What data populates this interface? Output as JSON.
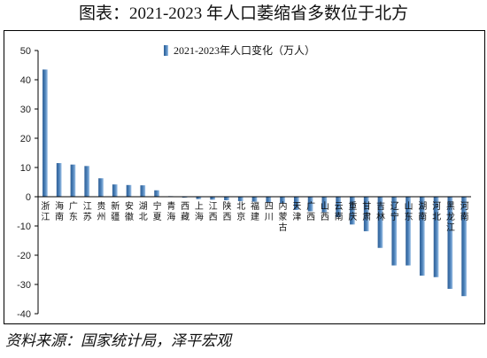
{
  "title": "图表：2021-2023 年人口萎缩省多数位于北方",
  "source": "资料来源：国家统计局，泽平宏观",
  "chart_data": {
    "type": "bar",
    "series": [
      {
        "name": "2021-2023年人口变化（万人）"
      }
    ],
    "categories": [
      "浙江",
      "海南",
      "广东",
      "江苏",
      "贵州",
      "新疆",
      "安徽",
      "湖北",
      "宁夏",
      "青海",
      "西藏",
      "上海",
      "江西",
      "陕西",
      "北京",
      "福建",
      "四川",
      "内蒙古",
      "天津",
      "广西",
      "山西",
      "云南",
      "重庆",
      "甘肃",
      "吉林",
      "辽宁",
      "山东",
      "湖南",
      "河北",
      "黑龙江",
      "河南"
    ],
    "values": [
      43.5,
      11.5,
      11,
      10.5,
      6.3,
      4.2,
      4.0,
      3.9,
      2.2,
      0.2,
      -0.3,
      -0.8,
      -1.0,
      -1.2,
      -1.5,
      -1.7,
      -2.0,
      -2.3,
      -4.5,
      -5.0,
      -5.3,
      -7.0,
      -9.5,
      -11.8,
      -17.5,
      -23.5,
      -23.5,
      -27.0,
      -27.5,
      -31.5,
      -34.0
    ],
    "ylim": [
      -40,
      50
    ],
    "yticks": [
      -40,
      -30,
      -20,
      -10,
      0,
      10,
      20,
      30,
      40,
      50
    ],
    "bar_color": "#4a80b8",
    "legend_position": "top-center",
    "grid": false
  }
}
